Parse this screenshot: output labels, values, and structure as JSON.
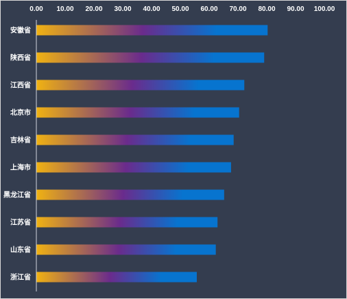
{
  "chart_data": {
    "type": "bar",
    "orientation": "horizontal",
    "title": "",
    "xlabel": "",
    "ylabel": "",
    "xlim": [
      0,
      100
    ],
    "x_ticks": [
      0,
      10,
      20,
      30,
      40,
      50,
      60,
      70,
      80,
      90,
      100
    ],
    "x_tick_labels": [
      "0.00",
      "10.00",
      "20.00",
      "30.00",
      "40.00",
      "50.00",
      "60.00",
      "70.00",
      "80.00",
      "90.00",
      "100.00"
    ],
    "x_axis_position": "top",
    "grid": false,
    "legend": "none",
    "categories": [
      "安徽省",
      "陕西省",
      "江西省",
      "北京市",
      "吉林省",
      "上海市",
      "黑龙江省",
      "江苏省",
      "山东省",
      "浙江省"
    ],
    "values": [
      80.3,
      79.1,
      72.2,
      70.4,
      68.5,
      67.6,
      65.2,
      62.9,
      62.3,
      55.7
    ],
    "colors": {
      "background": "#343d4f",
      "text": "#ffffff",
      "axis": "#d0d4dc",
      "bar_gradient": [
        "#f0b212",
        "#6a2b8c",
        "#0774cf",
        "#0774cf"
      ]
    }
  }
}
